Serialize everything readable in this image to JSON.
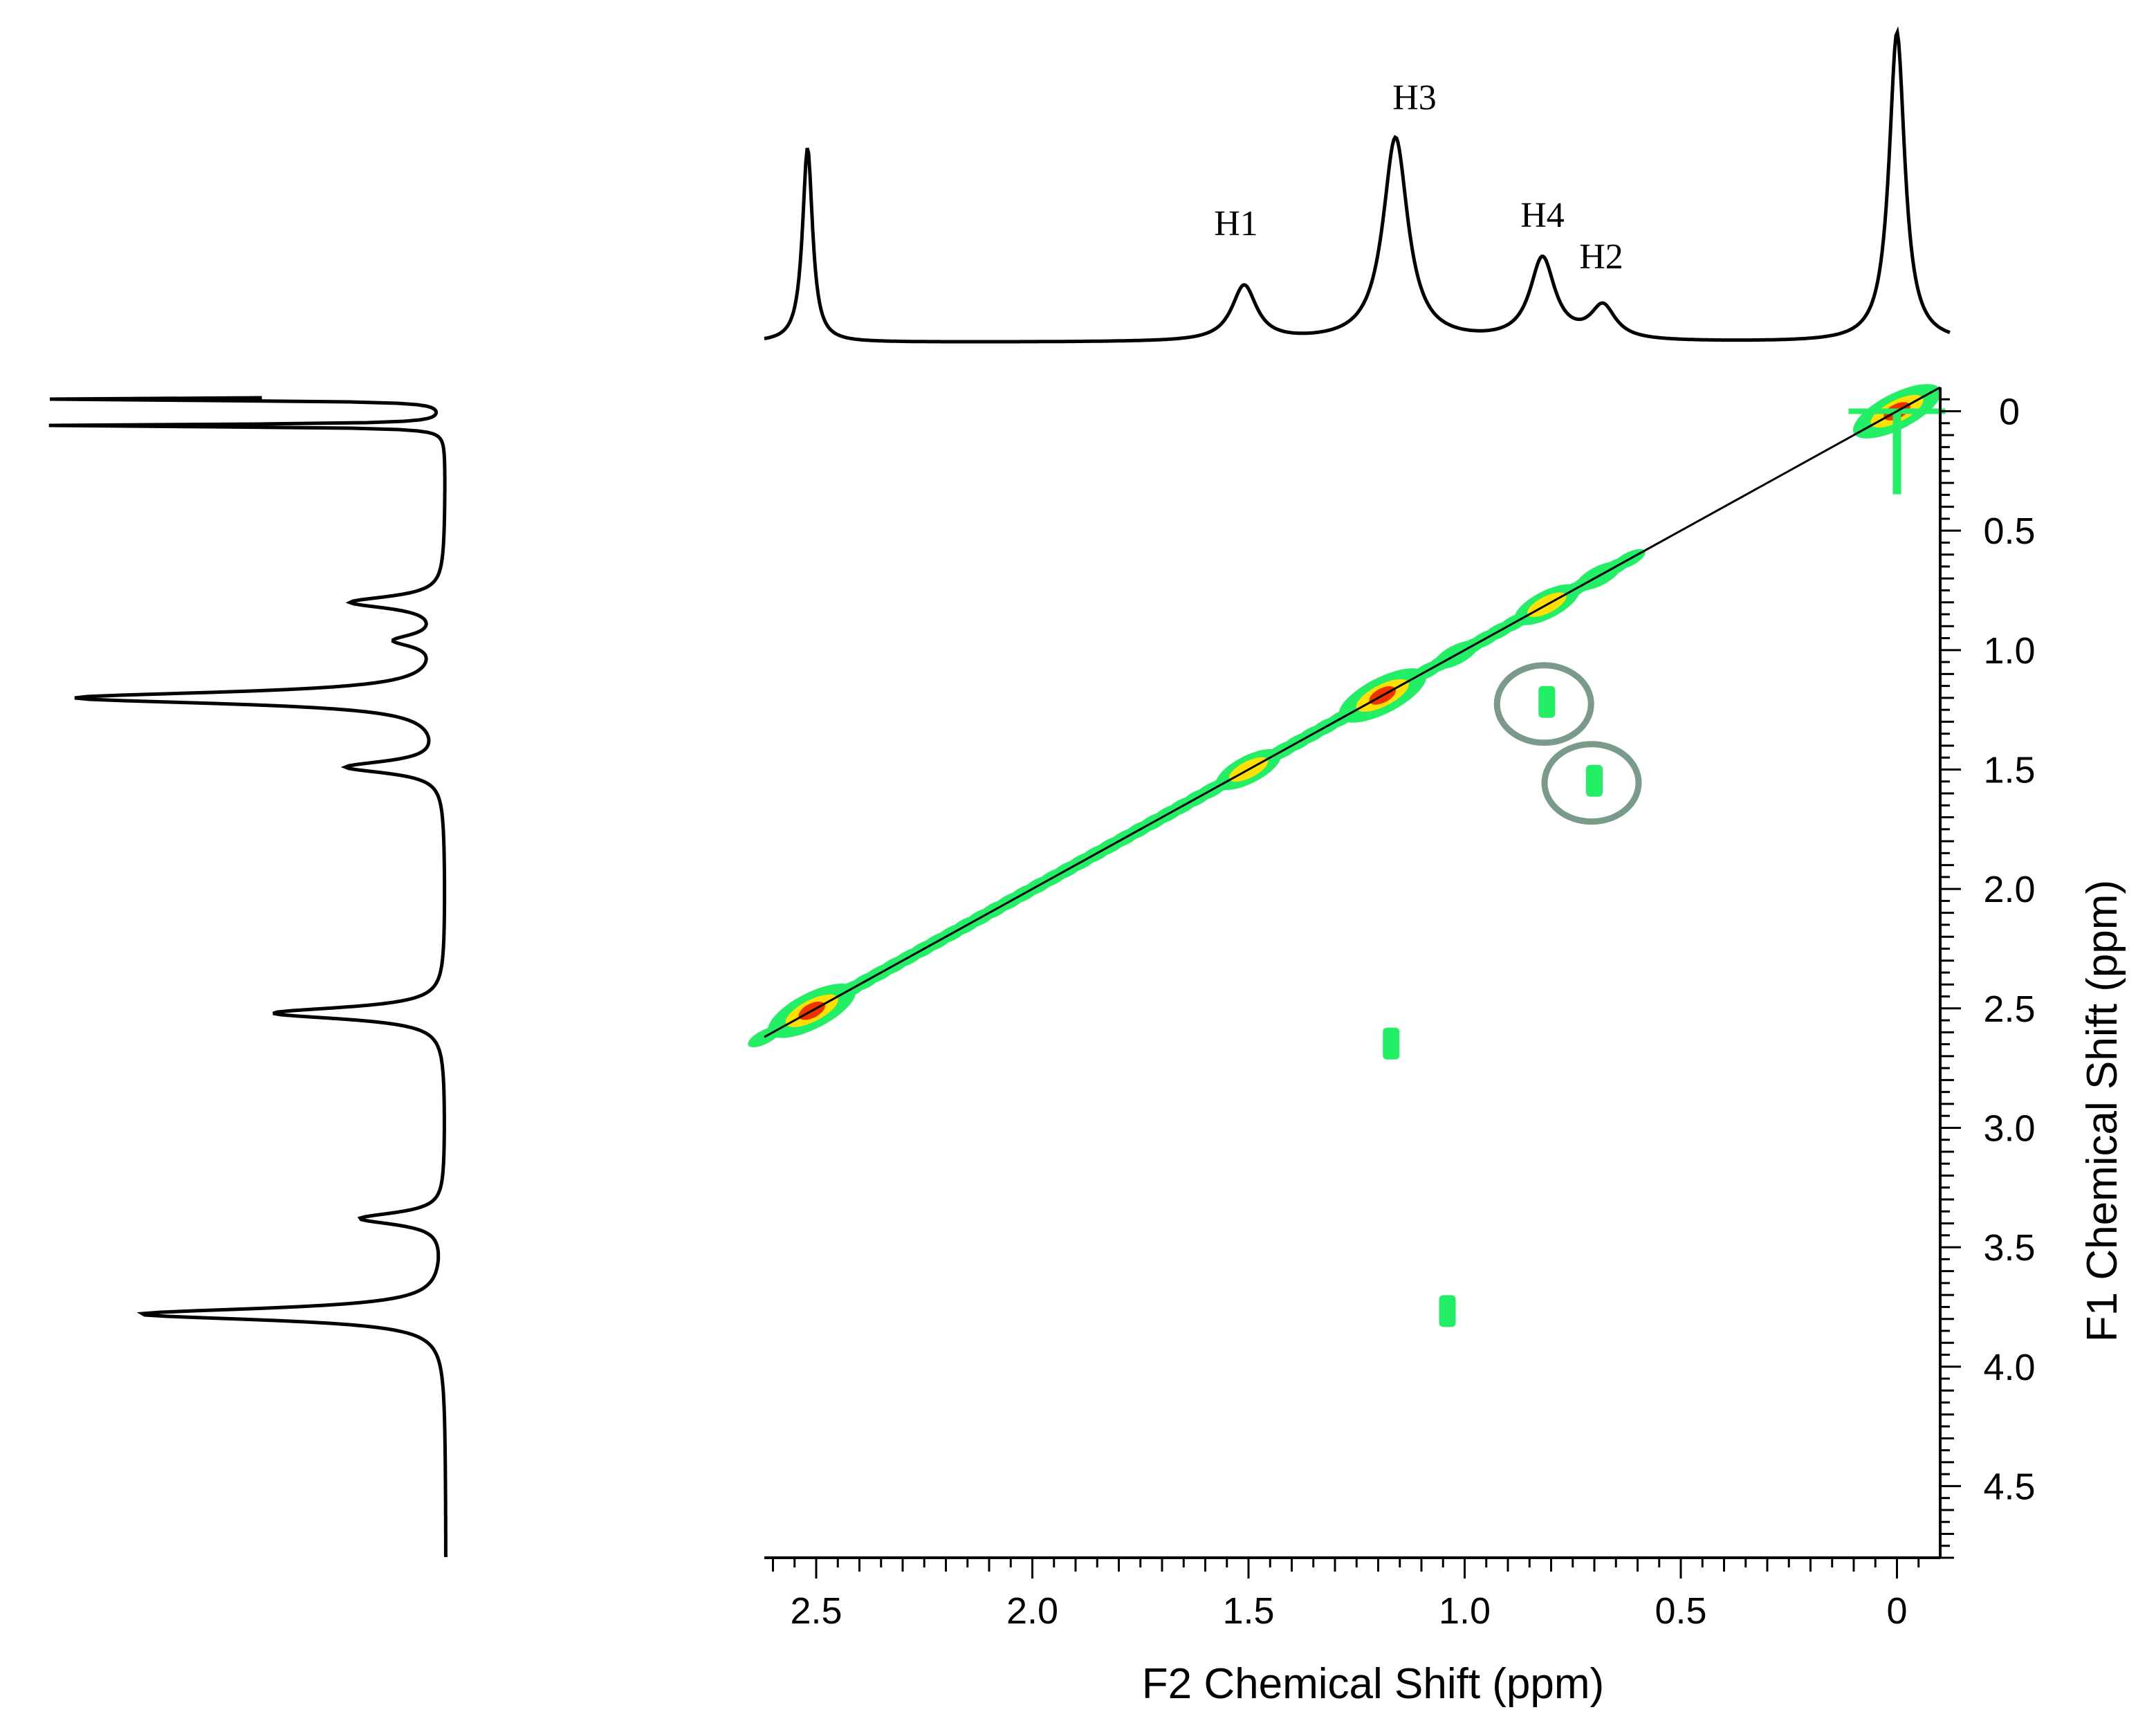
{
  "chart_data": {
    "type": "heatmap",
    "subtype": "2D NMR spectrum with 1D projections",
    "x_axis": {
      "label": "F2 Chemical Shift (ppm)",
      "range": [
        2.62,
        -0.1
      ],
      "reversed": true,
      "ticks": [
        2.5,
        2.0,
        1.5,
        1.0,
        0.5,
        0
      ],
      "tick_labels": [
        "2.5",
        "2.0",
        "1.5",
        "1.0",
        "0.5",
        "0"
      ],
      "minor_tick_step": 0.05
    },
    "y_axis": {
      "label": "F1 Chemical Shift (ppm)",
      "range": [
        -0.1,
        4.8
      ],
      "position": "right",
      "ticks": [
        0,
        0.5,
        1.0,
        1.5,
        2.0,
        2.5,
        3.0,
        3.5,
        4.0,
        4.5
      ],
      "tick_labels": [
        "0",
        "0.5",
        "1.0",
        "1.5",
        "2.0",
        "2.5",
        "3.0",
        "3.5",
        "4.0",
        "4.5"
      ],
      "minor_tick_step": 0.05
    },
    "diagonal": {
      "from": [
        2.62,
        2.62
      ],
      "to": [
        -0.1,
        -0.1
      ]
    },
    "top_projection_peaks": [
      {
        "label": "H1",
        "ppm": 1.51,
        "height": 0.25
      },
      {
        "label": "H3",
        "ppm": 1.16,
        "height": 0.92
      },
      {
        "label": "H4",
        "ppm": 0.82,
        "height": 0.37
      },
      {
        "label": "H2",
        "ppm": 0.68,
        "height": 0.15
      },
      {
        "label": "",
        "ppm": 2.52,
        "height": 0.88
      },
      {
        "label": "",
        "ppm": 0.0,
        "height": 1.4
      }
    ],
    "left_projection_peaks": [
      {
        "ppm": -0.05,
        "height": 1.0
      },
      {
        "ppm": 0.06,
        "height": 1.0
      },
      {
        "ppm": 0.8,
        "height": 0.23
      },
      {
        "ppm": 0.96,
        "height": 0.11
      },
      {
        "ppm": 1.2,
        "height": 0.92
      },
      {
        "ppm": 1.49,
        "height": 0.24
      },
      {
        "ppm": 2.52,
        "height": 0.43
      },
      {
        "ppm": 3.38,
        "height": 0.21
      },
      {
        "ppm": 3.78,
        "height": 0.76
      }
    ],
    "diagonal_peaks": [
      {
        "f2": 0.0,
        "f1": 0.0,
        "intensity": "high"
      },
      {
        "f2": 0.69,
        "f1": 0.69,
        "intensity": "low"
      },
      {
        "f2": 0.81,
        "f1": 0.81,
        "intensity": "medium"
      },
      {
        "f2": 1.02,
        "f1": 1.02,
        "intensity": "low"
      },
      {
        "f2": 1.19,
        "f1": 1.19,
        "intensity": "high"
      },
      {
        "f2": 1.5,
        "f1": 1.5,
        "intensity": "medium"
      },
      {
        "f2": 2.51,
        "f1": 2.51,
        "intensity": "high"
      }
    ],
    "cross_peaks": [
      {
        "f2": 0.81,
        "f1": 1.22,
        "circled": true
      },
      {
        "f2": 0.7,
        "f1": 1.55,
        "circled": true
      },
      {
        "f2": 1.17,
        "f1": 2.65,
        "circled": false
      },
      {
        "f2": 1.04,
        "f1": 3.77,
        "circled": false
      }
    ],
    "colors": {
      "low": "#22ee66",
      "medium": "#ffe000",
      "high": "#ee3300",
      "circle": "#7a9a8a",
      "line": "#000000"
    }
  }
}
